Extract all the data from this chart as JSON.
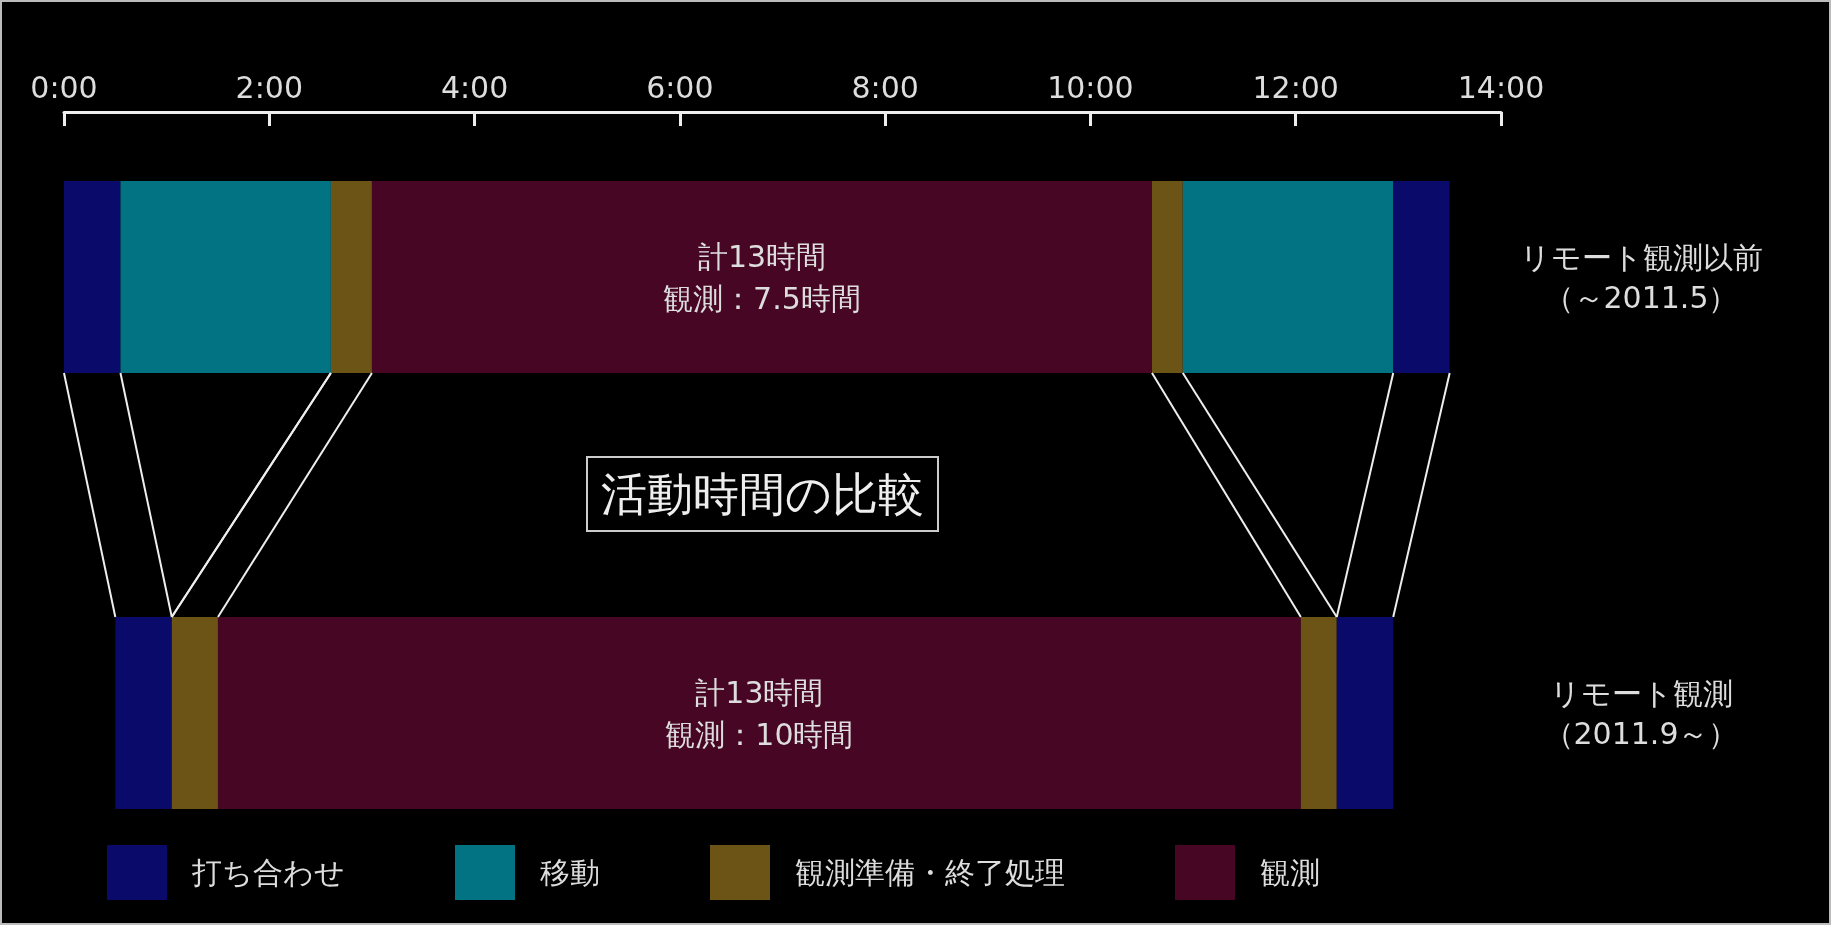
{
  "chart_data": {
    "type": "bar",
    "orientation": "horizontal",
    "title": "活動時間の比較",
    "categories": [
      "リモート観測以前（～2011.5）",
      "リモート観測（2011.9～）"
    ],
    "xlim": [
      0,
      14
    ],
    "xticks": [
      {
        "value": 0,
        "label": "0:00"
      },
      {
        "value": 2,
        "label": "2:00"
      },
      {
        "value": 4,
        "label": "4:00"
      },
      {
        "value": 6,
        "label": "6:00"
      },
      {
        "value": 8,
        "label": "8:00"
      },
      {
        "value": 10,
        "label": "10:00"
      },
      {
        "value": 12,
        "label": "12:00"
      },
      {
        "value": 14,
        "label": "14:00"
      }
    ],
    "series": [
      {
        "name": "打ち合わせ",
        "color": "#0a0a6a",
        "base": [
          0,
          0.5
        ],
        "values": [
          0.55,
          0.55
        ]
      },
      {
        "name": "移動",
        "color": "#027383",
        "base": [
          0.55,
          null
        ],
        "values": [
          2.05,
          null
        ]
      },
      {
        "name": "観測準備・終了処理",
        "color": "#6b5416",
        "base": [
          2.6,
          1.05
        ],
        "values": [
          0.4,
          0.45
        ]
      },
      {
        "name": "観測",
        "color": "#460624",
        "base": [
          3.0,
          1.5
        ],
        "values": [
          7.6,
          10.55
        ]
      },
      {
        "color": "#6b5416",
        "base": [
          10.6,
          12.05
        ],
        "values": [
          0.3,
          0.35
        ]
      },
      {
        "color": "#027383",
        "base": [
          10.9,
          null
        ],
        "values": [
          2.05,
          null
        ]
      },
      {
        "color": "#0a0a6a",
        "base": [
          12.95,
          12.4
        ],
        "values": [
          0.55,
          0.55
        ]
      }
    ],
    "annotations": [
      "計13時間",
      "観測：7.5時間",
      "計13時間",
      "観測：10時間"
    ],
    "grid": false,
    "legend": "bottom"
  }
}
